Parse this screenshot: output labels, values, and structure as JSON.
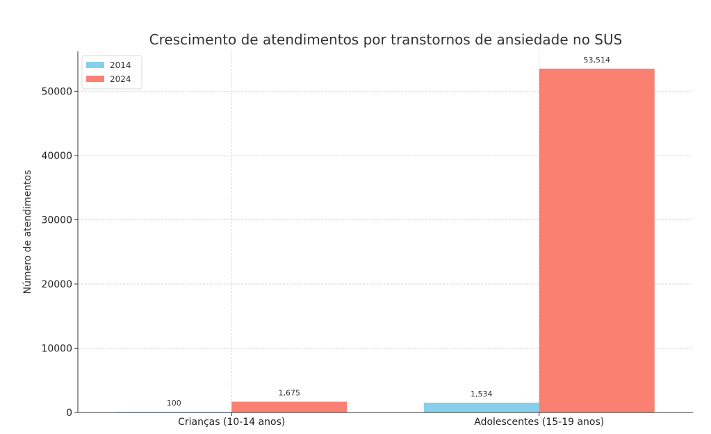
{
  "chart_data": {
    "type": "bar",
    "title": "Crescimento de atendimentos por transtornos de ansiedade no SUS",
    "xlabel": "",
    "ylabel": "Número de atendimentos",
    "categories": [
      "Crianças (10-14 anos)",
      "Adolescentes (15-19 anos)"
    ],
    "series": [
      {
        "name": "2014",
        "values": [
          100,
          1534
        ],
        "labels": [
          "100",
          "1,534"
        ],
        "color": "#87CEEB"
      },
      {
        "name": "2024",
        "values": [
          1675,
          53514
        ],
        "labels": [
          "1,675",
          "53,514"
        ],
        "color": "#FA8072"
      }
    ],
    "ylim": [
      0,
      56200
    ],
    "yticks": [
      0,
      10000,
      20000,
      30000,
      40000,
      50000
    ],
    "ytick_labels": [
      "0",
      "10000",
      "20000",
      "30000",
      "40000",
      "50000"
    ],
    "grid": true,
    "legend_position": "top-left"
  }
}
